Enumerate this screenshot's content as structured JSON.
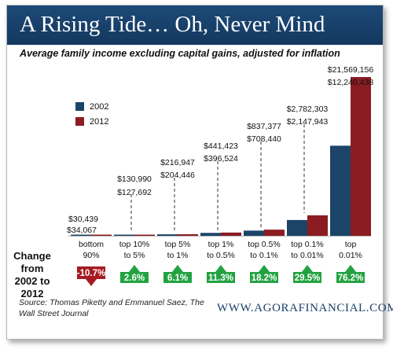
{
  "header": {
    "title": "A Rising Tide… Oh, Never Mind"
  },
  "subtitle": "Average family income excluding capital gains, adjusted for inflation",
  "change_label": "Change from 2002 to 2012",
  "source": "Source: Thomas Piketty and Emmanuel Saez, The Wall Street Journal",
  "site": "WWW.AGORAFINANCIAL.COM",
  "colors": {
    "header": "#1b4472",
    "series_2002": "#1c4468",
    "series_2012": "#8b1c22",
    "increase": "#23a241",
    "decrease": "#a51c22"
  },
  "chart_data": {
    "type": "bar",
    "categories": [
      "bottom 90%",
      "top 10% to 5%",
      "top 5% to 1%",
      "top 1% to 0.5%",
      "top 0.5% to 0.1%",
      "top 0.1% to 0.01%",
      "top 0.01%"
    ],
    "category_lines": [
      [
        "bottom",
        "90%"
      ],
      [
        "top 10%",
        "to 5%"
      ],
      [
        "top 5%",
        "to 1%"
      ],
      [
        "top 1%",
        "to 0.5%"
      ],
      [
        "top 0.5%",
        "to 0.1%"
      ],
      [
        "top 0.1%",
        "to 0.01%"
      ],
      [
        "top",
        "0.01%"
      ]
    ],
    "series": [
      {
        "name": "2002",
        "values": [
          34067,
          127692,
          204446,
          396524,
          708440,
          2147943,
          12240438
        ],
        "labels": [
          "$34,067",
          "$127,692",
          "$204,446",
          "$396,524",
          "$708,440",
          "$2,147,943",
          "$12,240,438"
        ]
      },
      {
        "name": "2012",
        "values": [
          30439,
          130990,
          216947,
          441423,
          837377,
          2782303,
          21569156
        ],
        "labels": [
          "$30,439",
          "$130,990",
          "$216,947",
          "$441,423",
          "$837,377",
          "$2,782,303",
          "$21,569,156"
        ]
      }
    ],
    "change": [
      -10.7,
      2.6,
      6.1,
      11.3,
      18.2,
      29.5,
      76.2
    ],
    "change_labels": [
      "-10.7%",
      "2.6%",
      "6.1%",
      "11.3%",
      "18.2%",
      "29.5%",
      "76.2%"
    ],
    "ylim": [
      0,
      21569156
    ],
    "legend_position": "left",
    "grid": false
  }
}
